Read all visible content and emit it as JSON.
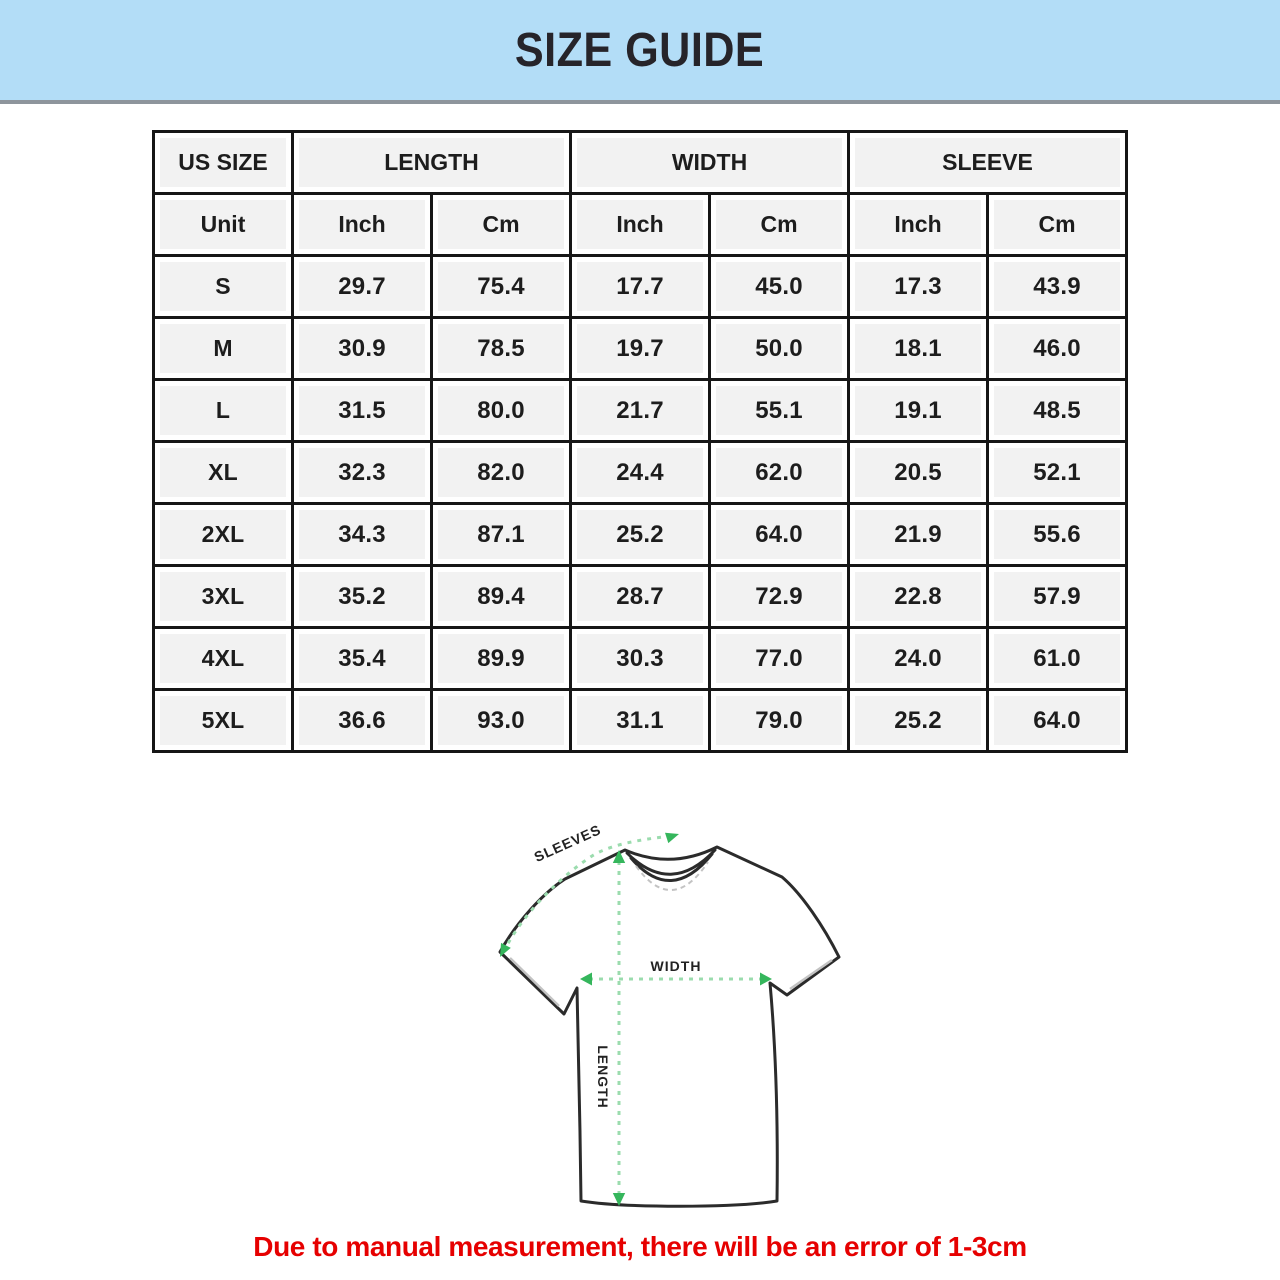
{
  "header": {
    "title": "SIZE GUIDE"
  },
  "table": {
    "column_groups": [
      {
        "label": "US SIZE",
        "colspan": 1
      },
      {
        "label": "LENGTH",
        "colspan": 2
      },
      {
        "label": "WIDTH",
        "colspan": 2
      },
      {
        "label": "SLEEVE",
        "colspan": 2
      }
    ],
    "unit_row": [
      "Unit",
      "Inch",
      "Cm",
      "Inch",
      "Cm",
      "Inch",
      "Cm"
    ],
    "rows": [
      {
        "size": "S",
        "values": [
          "29.7",
          "75.4",
          "17.7",
          "45.0",
          "17.3",
          "43.9"
        ]
      },
      {
        "size": "M",
        "values": [
          "30.9",
          "78.5",
          "19.7",
          "50.0",
          "18.1",
          "46.0"
        ]
      },
      {
        "size": "L",
        "values": [
          "31.5",
          "80.0",
          "21.7",
          "55.1",
          "19.1",
          "48.5"
        ]
      },
      {
        "size": "XL",
        "values": [
          "32.3",
          "82.0",
          "24.4",
          "62.0",
          "20.5",
          "52.1"
        ]
      },
      {
        "size": "2XL",
        "values": [
          "34.3",
          "87.1",
          "25.2",
          "64.0",
          "21.9",
          "55.6"
        ]
      },
      {
        "size": "3XL",
        "values": [
          "35.2",
          "89.4",
          "28.7",
          "72.9",
          "22.8",
          "57.9"
        ]
      },
      {
        "size": "4XL",
        "values": [
          "35.4",
          "89.9",
          "30.3",
          "77.0",
          "24.0",
          "61.0"
        ]
      },
      {
        "size": "5XL",
        "values": [
          "36.6",
          "93.0",
          "31.1",
          "79.0",
          "25.2",
          "64.0"
        ]
      }
    ]
  },
  "diagram": {
    "labels": {
      "sleeves": "SLEEVES",
      "width": "WIDTH",
      "length": "LENGTH"
    }
  },
  "note": {
    "text": "Due to manual measurement, there will be an error of 1-3cm"
  },
  "colors": {
    "banner_bg": "#b3ddf7",
    "divider": "#8e959c",
    "grid_black": "#161616",
    "cell_bg": "#f2f2f2",
    "note_red": "#e60000",
    "arrow_green": "#35b65c",
    "dash_green": "#9bdcae",
    "shirt_outline": "#2b2b2b"
  }
}
